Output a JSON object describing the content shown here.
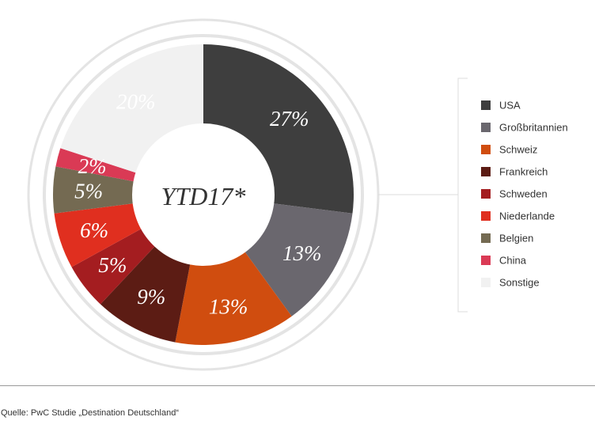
{
  "chart_data": {
    "type": "pie",
    "center_label": "YTD17*",
    "categories": [
      "USA",
      "Großbritannien",
      "Schweiz",
      "Frankreich",
      "Schweden",
      "Niederlande",
      "Belgien",
      "China",
      "Sonstige"
    ],
    "values": [
      27,
      13,
      13,
      9,
      5,
      6,
      5,
      2,
      20
    ],
    "labels": [
      "27%",
      "13%",
      "13%",
      "9%",
      "5%",
      "6%",
      "5%",
      "2%",
      "20%"
    ],
    "colors": [
      "#3e3e3e",
      "#6a676e",
      "#d04d0f",
      "#5c1c14",
      "#a41d20",
      "#e02f1f",
      "#746a52",
      "#da3a55",
      "#f1f1f1"
    ],
    "label_colors": [
      "#ffffff",
      "#ffffff",
      "#ffffff",
      "#ffffff",
      "#ffffff",
      "#ffffff",
      "#ffffff",
      "#ffffff",
      "#333333"
    ],
    "legend_position": "right"
  },
  "footer": {
    "source": "Quelle: PwC Studie „Destination Deutschland“"
  }
}
